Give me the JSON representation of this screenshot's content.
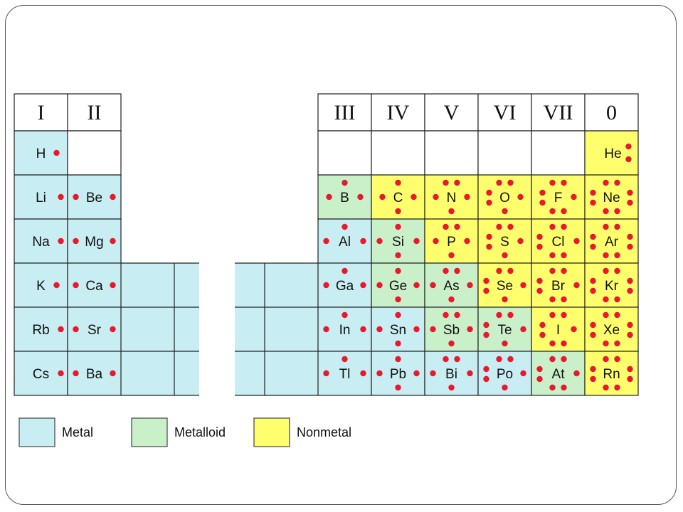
{
  "colors": {
    "metal": "#c8edf2",
    "metalloid": "#c9f0c9",
    "nonmetal": "#ffff6e",
    "empty": "#ffffff",
    "electron": "#e8192c",
    "line": "#222222"
  },
  "groups_left": [
    "I",
    "II"
  ],
  "groups_right": [
    "III",
    "IV",
    "V",
    "VI",
    "VII",
    "0"
  ],
  "legend": [
    {
      "label": "Metal",
      "category": "metal"
    },
    {
      "label": "Metalloid",
      "category": "metalloid"
    },
    {
      "label": "Nonmetal",
      "category": "nonmetal"
    }
  ],
  "left_cells": [
    [
      {
        "symbol": "H",
        "electrons": 1,
        "category": "metal"
      },
      {
        "symbol": "",
        "electrons": 0,
        "category": "empty"
      }
    ],
    [
      {
        "symbol": "Li",
        "electrons": 1,
        "category": "metal"
      },
      {
        "symbol": "Be",
        "electrons": 2,
        "category": "metal"
      }
    ],
    [
      {
        "symbol": "Na",
        "electrons": 1,
        "category": "metal"
      },
      {
        "symbol": "Mg",
        "electrons": 2,
        "category": "metal"
      }
    ],
    [
      {
        "symbol": "K",
        "electrons": 1,
        "category": "metal"
      },
      {
        "symbol": "Ca",
        "electrons": 2,
        "category": "metal"
      }
    ],
    [
      {
        "symbol": "Rb",
        "electrons": 1,
        "category": "metal"
      },
      {
        "symbol": "Sr",
        "electrons": 2,
        "category": "metal"
      }
    ],
    [
      {
        "symbol": "Cs",
        "electrons": 1,
        "category": "metal"
      },
      {
        "symbol": "Ba",
        "electrons": 2,
        "category": "metal"
      }
    ]
  ],
  "right_cells": [
    [
      {
        "symbol": "",
        "electrons": 0,
        "category": "empty"
      },
      {
        "symbol": "",
        "electrons": 0,
        "category": "empty"
      },
      {
        "symbol": "",
        "electrons": 0,
        "category": "empty"
      },
      {
        "symbol": "",
        "electrons": 0,
        "category": "empty"
      },
      {
        "symbol": "",
        "electrons": 0,
        "category": "empty"
      },
      {
        "symbol": "He",
        "electrons": 2,
        "category": "nonmetal"
      }
    ],
    [
      {
        "symbol": "B",
        "electrons": 3,
        "category": "metalloid"
      },
      {
        "symbol": "C",
        "electrons": 4,
        "category": "nonmetal"
      },
      {
        "symbol": "N",
        "electrons": 5,
        "category": "nonmetal"
      },
      {
        "symbol": "O",
        "electrons": 6,
        "category": "nonmetal"
      },
      {
        "symbol": "F",
        "electrons": 7,
        "category": "nonmetal"
      },
      {
        "symbol": "Ne",
        "electrons": 8,
        "category": "nonmetal"
      }
    ],
    [
      {
        "symbol": "Al",
        "electrons": 3,
        "category": "metal"
      },
      {
        "symbol": "Si",
        "electrons": 4,
        "category": "metalloid"
      },
      {
        "symbol": "P",
        "electrons": 5,
        "category": "nonmetal"
      },
      {
        "symbol": "S",
        "electrons": 6,
        "category": "nonmetal"
      },
      {
        "symbol": "Cl",
        "electrons": 7,
        "category": "nonmetal"
      },
      {
        "symbol": "Ar",
        "electrons": 8,
        "category": "nonmetal"
      }
    ],
    [
      {
        "symbol": "Ga",
        "electrons": 3,
        "category": "metal"
      },
      {
        "symbol": "Ge",
        "electrons": 4,
        "category": "metalloid"
      },
      {
        "symbol": "As",
        "electrons": 5,
        "category": "metalloid"
      },
      {
        "symbol": "Se",
        "electrons": 6,
        "category": "nonmetal"
      },
      {
        "symbol": "Br",
        "electrons": 7,
        "category": "nonmetal"
      },
      {
        "symbol": "Kr",
        "electrons": 8,
        "category": "nonmetal"
      }
    ],
    [
      {
        "symbol": "In",
        "electrons": 3,
        "category": "metal"
      },
      {
        "symbol": "Sn",
        "electrons": 4,
        "category": "metal"
      },
      {
        "symbol": "Sb",
        "electrons": 5,
        "category": "metalloid"
      },
      {
        "symbol": "Te",
        "electrons": 6,
        "category": "metalloid"
      },
      {
        "symbol": "I",
        "electrons": 7,
        "category": "nonmetal"
      },
      {
        "symbol": "Xe",
        "electrons": 8,
        "category": "nonmetal"
      }
    ],
    [
      {
        "symbol": "Tl",
        "electrons": 3,
        "category": "metal"
      },
      {
        "symbol": "Pb",
        "electrons": 4,
        "category": "metal"
      },
      {
        "symbol": "Bi",
        "electrons": 5,
        "category": "metal"
      },
      {
        "symbol": "Po",
        "electrons": 6,
        "category": "metal"
      },
      {
        "symbol": "At",
        "electrons": 7,
        "category": "metalloid"
      },
      {
        "symbol": "Rn",
        "electrons": 8,
        "category": "nonmetal"
      }
    ]
  ]
}
